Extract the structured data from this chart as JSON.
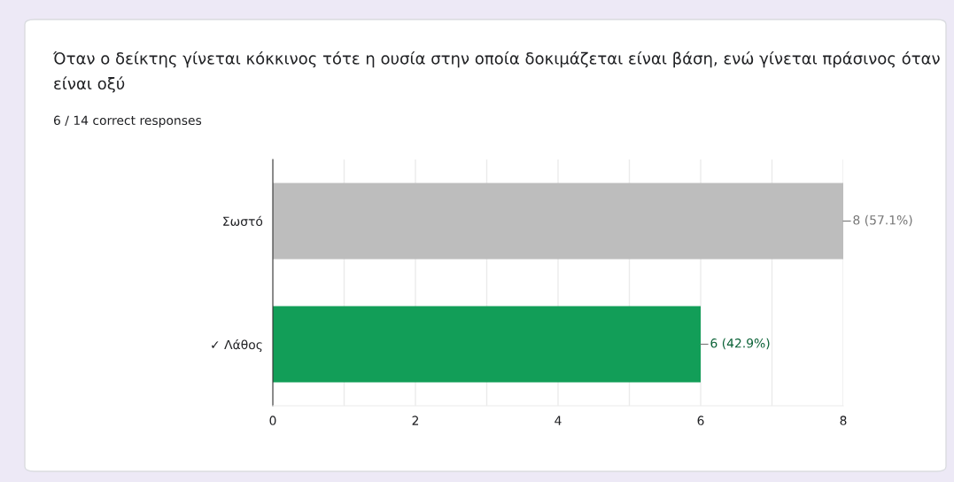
{
  "chart_data": {
    "type": "bar",
    "orientation": "horizontal",
    "title": "Όταν ο δείκτης γίνεται κόκκινος τότε η ουσία στην οποία δοκιμάζεται είναι βάση, ενώ γίνεται πράσινος όταν είναι οξύ",
    "subtitle": "6 / 14 correct responses",
    "categories": [
      "Σωστό",
      "✓ Λάθος"
    ],
    "values": [
      8,
      6
    ],
    "colors": [
      "#bdbdbd",
      "#129e58"
    ],
    "value_labels": [
      "8 (57.1%)",
      "6 (42.9%)"
    ],
    "xlim": [
      0,
      8
    ],
    "xticks": [
      0,
      {
        "value": 1,
        "label": null
      },
      2,
      {
        "value": 3,
        "label": null
      },
      4,
      {
        "value": 5,
        "label": null
      },
      6,
      {
        "value": 7,
        "label": null
      },
      8
    ],
    "grid": "x"
  }
}
